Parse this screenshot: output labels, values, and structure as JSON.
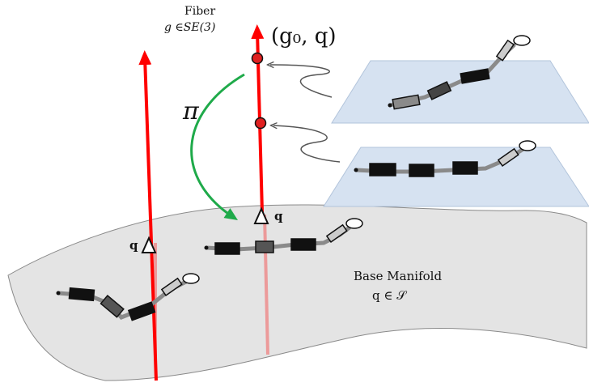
{
  "fiber_label": {
    "line1": "Fiber",
    "line2": "g ∈SE(3)"
  },
  "point_label": "(g₀, q)",
  "projection_label": "π",
  "q_left": "q",
  "q_right": "q",
  "base_manifold": {
    "title": "Base Manifold",
    "formula": "q ∈ 𝒮"
  },
  "colors": {
    "fiber": "#ff0000",
    "fiber_below": "#e89090",
    "manifold": "#e3e3e3",
    "plane": "#d4e0f0",
    "projection_arrow": "#1faa4a",
    "point": "#e02020"
  }
}
